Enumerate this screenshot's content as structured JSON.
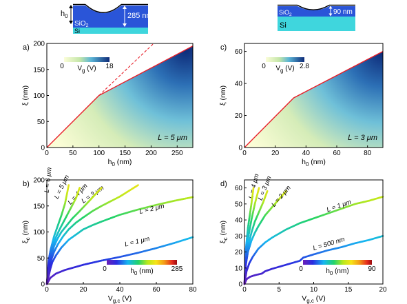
{
  "colors": {
    "red_line": "#e8202a",
    "dashed": "#e8202a",
    "sio2": "#2a55d8",
    "si": "#3fd6dd",
    "map_low": "#f7f9cf",
    "map_mid": "#59b4d6",
    "map_high": "#0d2a78"
  },
  "insets": [
    {
      "name": "inset-a",
      "labels": {
        "h0": "h",
        "h0_sub": "0",
        "depth": "285 nm",
        "sio2": "SiO",
        "sio2_sub": "2",
        "si": "Si"
      }
    },
    {
      "name": "inset-c",
      "labels": {
        "depth": "90 nm",
        "sio2": "SiO",
        "sio2_sub": "2",
        "si": "Si"
      }
    }
  ],
  "chart_data": [
    {
      "panel_label": "a)",
      "type": "heatmap",
      "xlabel": "h",
      "xlabel_sub": "0",
      "xlabel_unit": " (nm)",
      "ylabel": "ξ",
      "ylabel_unit": " (nm)",
      "xlim": [
        0,
        280
      ],
      "ylim": [
        0,
        200
      ],
      "xticks": [
        0,
        50,
        100,
        150,
        200,
        250
      ],
      "yticks": [
        0,
        50,
        100,
        150,
        200
      ],
      "boundary": {
        "x": [
          0,
          100,
          280
        ],
        "y": [
          0,
          100,
          195
        ]
      },
      "dashed_extension": {
        "x": [
          100,
          205
        ],
        "y": [
          100,
          200
        ]
      },
      "annotation": "L = 5 μm",
      "colorbar": {
        "min": "0",
        "max": "18",
        "label": "V",
        "label_sub": "g",
        "label_unit": " (V)"
      }
    },
    {
      "panel_label": "c)",
      "type": "heatmap",
      "xlabel": "h",
      "xlabel_sub": "0",
      "xlabel_unit": " (nm)",
      "ylabel": "ξ",
      "ylabel_unit": " (nm)",
      "xlim": [
        0,
        90
      ],
      "ylim": [
        0,
        65
      ],
      "xticks": [
        0,
        20,
        40,
        60,
        80
      ],
      "yticks": [
        0,
        20,
        40,
        60
      ],
      "boundary": {
        "x": [
          0,
          32,
          90
        ],
        "y": [
          0,
          31,
          60
        ]
      },
      "dashed_extension": {
        "x": [
          32,
          90
        ],
        "y": [
          31,
          60
        ]
      },
      "annotation": "L = 3 μm",
      "colorbar": {
        "min": "0",
        "max": "2.8",
        "label": "V",
        "label_sub": "g",
        "label_unit": " (V)"
      }
    },
    {
      "panel_label": "b)",
      "type": "line",
      "xlabel": "V",
      "xlabel_sub": "g,c",
      "xlabel_unit": " (V)",
      "ylabel": "ξ",
      "ylabel_sub": "c",
      "ylabel_unit": " (nm)",
      "xlim": [
        0,
        80
      ],
      "ylim": [
        0,
        200
      ],
      "xticks": [
        0,
        20,
        40,
        60,
        80
      ],
      "yticks": [
        0,
        50,
        100,
        150,
        200
      ],
      "colorbar": {
        "min": "0",
        "max": "285",
        "label": "h",
        "label_sub": "0",
        "label_unit": " (nm)",
        "vmax": 285
      },
      "series": [
        {
          "name": "L = 1 μm",
          "x": [
            0,
            2,
            5,
            10,
            15,
            20,
            25,
            30,
            40,
            50,
            60,
            70,
            80
          ],
          "y": [
            0,
            12,
            20,
            27,
            32,
            37,
            41,
            45,
            52,
            60,
            69,
            79,
            90
          ],
          "label_at": [
            43,
            72
          ]
        },
        {
          "name": "L = 2 μm",
          "x": [
            0,
            1,
            2,
            3,
            5,
            8,
            12,
            16,
            20,
            25,
            30,
            40,
            50,
            60,
            70,
            80
          ],
          "y": [
            0,
            15,
            30,
            42,
            55,
            70,
            85,
            95,
            105,
            113,
            120,
            133,
            143,
            152,
            160,
            167
          ],
          "label_at": [
            51,
            135
          ]
        },
        {
          "name": "L = 3 μm",
          "x": [
            0,
            1,
            2,
            4,
            6,
            9,
            12,
            16,
            20,
            25,
            30,
            40,
            50
          ],
          "y": [
            0,
            24,
            42,
            62,
            76,
            92,
            105,
            118,
            128,
            140,
            150,
            168,
            190
          ],
          "label_at": [
            20,
            155
          ]
        },
        {
          "name": "L = 4 μm",
          "x": [
            0,
            1,
            2,
            4,
            6,
            8,
            11,
            14,
            18,
            22,
            26,
            30
          ],
          "y": [
            0,
            30,
            50,
            73,
            88,
            100,
            113,
            126,
            140,
            155,
            170,
            185
          ],
          "label_at": [
            13,
            152
          ]
        },
        {
          "name": "L = 5 μm",
          "x": [
            0,
            1,
            2,
            3,
            5,
            7,
            10,
            13,
            16,
            18
          ],
          "y": [
            0,
            33,
            55,
            70,
            90,
            105,
            125,
            145,
            165,
            185
          ],
          "label_at": [
            6,
            163
          ]
        },
        {
          "name": "L = 6 μm",
          "x": [
            0,
            1,
            2,
            4,
            6,
            8,
            10,
            12
          ],
          "y": [
            0,
            45,
            65,
            92,
            112,
            132,
            155,
            190
          ],
          "label_at": [
            1,
            175
          ]
        }
      ]
    },
    {
      "panel_label": "d)",
      "type": "line",
      "xlabel": "V",
      "xlabel_sub": "g,c",
      "xlabel_unit": " (V)",
      "ylabel": "ξ",
      "ylabel_sub": "c",
      "ylabel_unit": " (nm)",
      "xlim": [
        0,
        20
      ],
      "ylim": [
        0,
        65
      ],
      "xticks": [
        0,
        5,
        10,
        15,
        20
      ],
      "yticks": [
        0,
        10,
        20,
        30,
        40,
        50,
        60
      ],
      "colorbar": {
        "min": "0",
        "max": "90",
        "label": "h",
        "label_sub": "0",
        "label_unit": " (nm)",
        "vmax": 90
      },
      "series": [
        {
          "name": "L = 500 nm",
          "x": [
            0,
            0.3,
            0.8,
            1.5,
            2.5,
            3,
            4,
            6,
            8,
            8.5,
            10,
            12,
            14,
            16,
            18,
            20
          ],
          "y": [
            0,
            3,
            4.5,
            5.5,
            6.5,
            8,
            9.5,
            12,
            14.5,
            16.5,
            18.5,
            21,
            23,
            25.5,
            27.5,
            30
          ],
          "label_at": [
            10,
            21
          ]
        },
        {
          "name": "L = 1 μm",
          "x": [
            0,
            0.3,
            0.7,
            1.2,
            2,
            3,
            4,
            6,
            8,
            10,
            12,
            14,
            16,
            18,
            20
          ],
          "y": [
            0,
            8,
            13,
            17,
            22,
            26,
            29,
            34,
            38,
            41,
            44,
            47,
            50,
            52,
            54.5
          ],
          "label_at": [
            12,
            45
          ]
        },
        {
          "name": "L = 2 μm",
          "x": [
            0,
            0.2,
            0.5,
            1,
            1.5,
            2,
            3,
            4,
            5,
            6
          ],
          "y": [
            0,
            12,
            20,
            27,
            32,
            36,
            43,
            48,
            53,
            58
          ],
          "label_at": [
            4.3,
            48
          ]
        },
        {
          "name": "L = 3 μm",
          "x": [
            0,
            0.2,
            0.5,
            1,
            1.5,
            2,
            2.7,
            3.3
          ],
          "y": [
            0,
            14,
            23,
            32,
            39,
            44,
            51,
            58
          ],
          "label_at": [
            2.5,
            52
          ]
        },
        {
          "name": "L = 4 μm",
          "x": [
            0,
            0.2,
            0.5,
            1,
            1.5,
            2.1
          ],
          "y": [
            0,
            18,
            28,
            40,
            50,
            60
          ],
          "label_at": [
            1.2,
            53
          ]
        },
        {
          "name": "",
          "x": [
            0,
            0.2,
            0.5,
            1,
            1.3
          ],
          "y": [
            0,
            22,
            35,
            50,
            60
          ],
          "label_at": null
        }
      ]
    }
  ]
}
